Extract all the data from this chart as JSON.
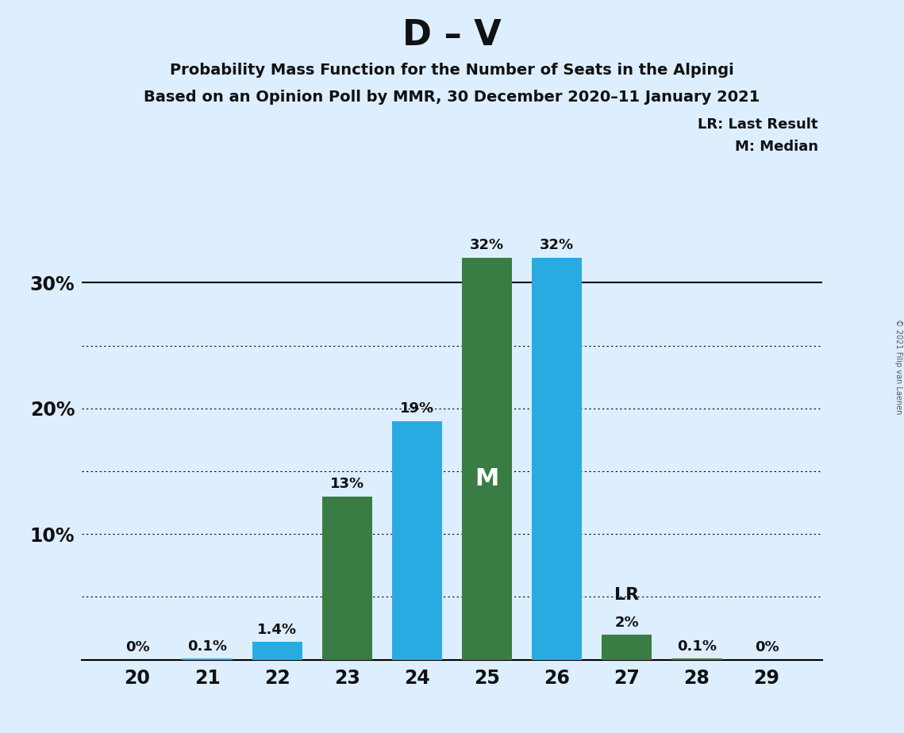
{
  "title": "D – V",
  "subtitle1": "Probability Mass Function for the Number of Seats in the Alpingi",
  "subtitle2": "Based on an Opinion Poll by MMR, 30 December 2020–11 January 2021",
  "copyright": "© 2021 Filip van Laenen",
  "seats": [
    20,
    21,
    22,
    23,
    24,
    25,
    26,
    27,
    28,
    29
  ],
  "probabilities": [
    0.0,
    0.1,
    1.4,
    13.0,
    19.0,
    32.0,
    32.0,
    2.0,
    0.1,
    0.0
  ],
  "labels": [
    "0%",
    "0.1%",
    "1.4%",
    "13%",
    "19%",
    "32%",
    "32%",
    "2%",
    "0.1%",
    "0%"
  ],
  "bar_colors": [
    "#29ABE2",
    "#29ABE2",
    "#29ABE2",
    "#3A7D44",
    "#29ABE2",
    "#3A7D44",
    "#29ABE2",
    "#3A7D44",
    "#3A7D44",
    "#3A7D44"
  ],
  "median_seat": 25,
  "lr_seat": 27,
  "median_label": "M",
  "lr_label": "LR",
  "median_text_color": "#FFFFFF",
  "lr_text_color": "#111111",
  "legend_lr": "LR: Last Result",
  "legend_m": "M: Median",
  "background_color": "#DDEEFF",
  "ylim": [
    0,
    35
  ],
  "ytick_positions": [
    10,
    20,
    30
  ],
  "ytick_labels": [
    "10%",
    "20%",
    "30%"
  ],
  "dotted_lines": [
    5,
    10,
    15,
    20,
    25
  ],
  "solid_line": 30,
  "bar_width": 0.72
}
